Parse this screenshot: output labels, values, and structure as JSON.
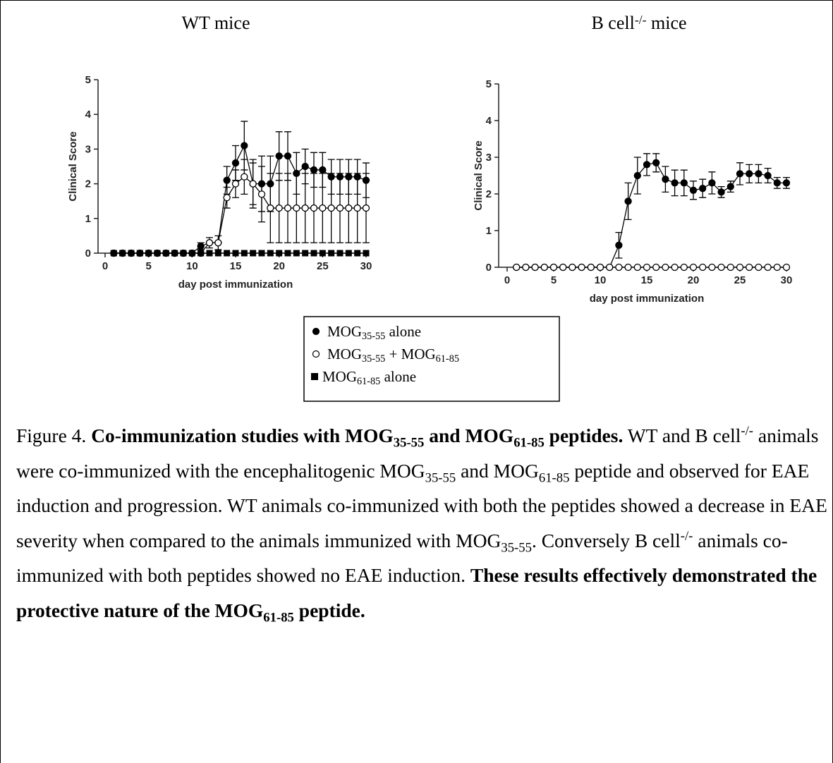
{
  "chart_data": [
    {
      "type": "line",
      "title": [
        {
          "text": "WT mice"
        }
      ],
      "xlabel": "day post immunization",
      "ylabel": "Clinical Score",
      "xlim": [
        0,
        30
      ],
      "xticks": [
        0,
        5,
        10,
        15,
        20,
        25,
        30
      ],
      "ylim": [
        0,
        5
      ],
      "yticks": [
        0,
        1,
        2,
        3,
        4,
        5
      ],
      "x": [
        1,
        2,
        3,
        4,
        5,
        6,
        7,
        8,
        9,
        10,
        11,
        12,
        13,
        14,
        15,
        16,
        17,
        18,
        19,
        20,
        21,
        22,
        23,
        24,
        25,
        26,
        27,
        28,
        29,
        30
      ],
      "series": [
        {
          "marker": "circle-filled",
          "color": "#000000",
          "values": [
            0,
            0,
            0,
            0,
            0,
            0,
            0,
            0,
            0,
            0,
            0.2,
            0.3,
            0.3,
            2.1,
            2.6,
            3.1,
            2.0,
            2.0,
            2.0,
            2.8,
            2.8,
            2.3,
            2.5,
            2.4,
            2.4,
            2.2,
            2.2,
            2.2,
            2.2,
            2.1
          ],
          "errors": [
            null,
            null,
            null,
            null,
            null,
            null,
            null,
            null,
            null,
            null,
            0.1,
            0.15,
            0.2,
            0.4,
            0.5,
            0.7,
            0.6,
            0.8,
            0.8,
            0.7,
            0.7,
            0.6,
            0.5,
            0.5,
            0.5,
            0.5,
            0.5,
            0.5,
            0.5,
            0.5
          ]
        },
        {
          "marker": "circle-open",
          "color": "#000000",
          "values": [
            0,
            0,
            0,
            0,
            0,
            0,
            0,
            0,
            0,
            0,
            0,
            0.3,
            0.3,
            1.6,
            2.0,
            2.2,
            2.0,
            1.7,
            1.3,
            1.3,
            1.3,
            1.3,
            1.3,
            1.3,
            1.3,
            1.3,
            1.3,
            1.3,
            1.3,
            1.3
          ],
          "errors": [
            null,
            null,
            null,
            null,
            null,
            null,
            null,
            null,
            null,
            null,
            null,
            null,
            null,
            0.3,
            0.4,
            0.5,
            0.7,
            0.8,
            1.0,
            1.0,
            1.0,
            1.0,
            1.0,
            1.0,
            1.0,
            1.0,
            1.0,
            1.0,
            1.0,
            1.0
          ]
        },
        {
          "marker": "square",
          "color": "#000000",
          "values": [
            0,
            0,
            0,
            0,
            0,
            0,
            0,
            0,
            0,
            0,
            0,
            0,
            0,
            0,
            0,
            0,
            0,
            0,
            0,
            0,
            0,
            0,
            0,
            0,
            0,
            0,
            0,
            0,
            0,
            0
          ]
        }
      ]
    },
    {
      "type": "line",
      "title": [
        {
          "text": "B cell"
        },
        {
          "text": "-/-",
          "script": "sup"
        },
        {
          "text": " mice"
        }
      ],
      "xlabel": "day post immunization",
      "ylabel": "Clinical Score",
      "xlim": [
        0,
        30
      ],
      "xticks": [
        0,
        5,
        10,
        15,
        20,
        25,
        30
      ],
      "ylim": [
        0,
        5
      ],
      "yticks": [
        0,
        1,
        2,
        3,
        4,
        5
      ],
      "x": [
        1,
        2,
        3,
        4,
        5,
        6,
        7,
        8,
        9,
        10,
        11,
        12,
        13,
        14,
        15,
        16,
        17,
        18,
        19,
        20,
        21,
        22,
        23,
        24,
        25,
        26,
        27,
        28,
        29,
        30
      ],
      "series": [
        {
          "marker": "circle-filled",
          "color": "#000000",
          "values": [
            0,
            0,
            0,
            0,
            0,
            0,
            0,
            0,
            0,
            0,
            0,
            0.6,
            1.8,
            2.5,
            2.8,
            2.85,
            2.4,
            2.3,
            2.3,
            2.1,
            2.15,
            2.3,
            2.05,
            2.2,
            2.55,
            2.55,
            2.55,
            2.5,
            2.3,
            2.3
          ],
          "errors": [
            null,
            null,
            null,
            null,
            null,
            null,
            null,
            null,
            null,
            null,
            null,
            0.35,
            0.5,
            0.5,
            0.3,
            0.25,
            0.35,
            0.35,
            0.35,
            0.25,
            0.25,
            0.3,
            0.15,
            0.15,
            0.3,
            0.25,
            0.25,
            0.2,
            0.15,
            0.15
          ]
        },
        {
          "marker": "circle-open",
          "color": "#000000",
          "values": [
            0,
            0,
            0,
            0,
            0,
            0,
            0,
            0,
            0,
            0,
            0,
            0,
            0,
            0,
            0,
            0,
            0,
            0,
            0,
            0,
            0,
            0,
            0,
            0,
            0,
            0,
            0,
            0,
            0,
            0
          ]
        }
      ]
    }
  ],
  "legend": {
    "items": [
      {
        "marker": "circle-filled",
        "runs": [
          {
            "text": "MOG"
          },
          {
            "text": "35-55",
            "script": "sub"
          },
          {
            "text": " alone"
          }
        ]
      },
      {
        "marker": "circle-open",
        "runs": [
          {
            "text": "MOG"
          },
          {
            "text": "35-55",
            "script": "sub"
          },
          {
            "text": " + MOG"
          },
          {
            "text": "61-85",
            "script": "sub"
          }
        ]
      },
      {
        "marker": "square",
        "runs": [
          {
            "text": "MOG"
          },
          {
            "text": "61-85",
            "script": "sub"
          },
          {
            "text": " alone"
          }
        ]
      }
    ]
  },
  "caption": {
    "runs": [
      {
        "text": "Figure 4. "
      },
      {
        "text": "Co-immunization studies with MOG",
        "bold": true
      },
      {
        "text": "35-55",
        "bold": true,
        "script": "sub"
      },
      {
        "text": " and MOG",
        "bold": true
      },
      {
        "text": "61-85",
        "bold": true,
        "script": "sub"
      },
      {
        "text": " peptides.",
        "bold": true
      },
      {
        "text": " WT and B cell"
      },
      {
        "text": "-/-",
        "script": "sup"
      },
      {
        "text": " animals were co-immunized with the encephalitogenic MOG"
      },
      {
        "text": "35-55",
        "script": "sub"
      },
      {
        "text": " and MOG"
      },
      {
        "text": "61-85",
        "script": "sub"
      },
      {
        "text": " peptide and observed for EAE induction and progression. WT animals co-immunized with both the peptides showed a decrease in EAE severity when compared to the animals immunized with MOG"
      },
      {
        "text": "35-55",
        "script": "sub"
      },
      {
        "text": ". Conversely B cell"
      },
      {
        "text": "-/-",
        "script": "sup"
      },
      {
        "text": " animals co-immunized with both peptides showed no EAE induction. "
      },
      {
        "text": "These results effectively demonstrated the protective nature of the MOG",
        "bold": true
      },
      {
        "text": "61-85",
        "bold": true,
        "script": "sub"
      },
      {
        "text": " peptide.",
        "bold": true
      }
    ]
  }
}
